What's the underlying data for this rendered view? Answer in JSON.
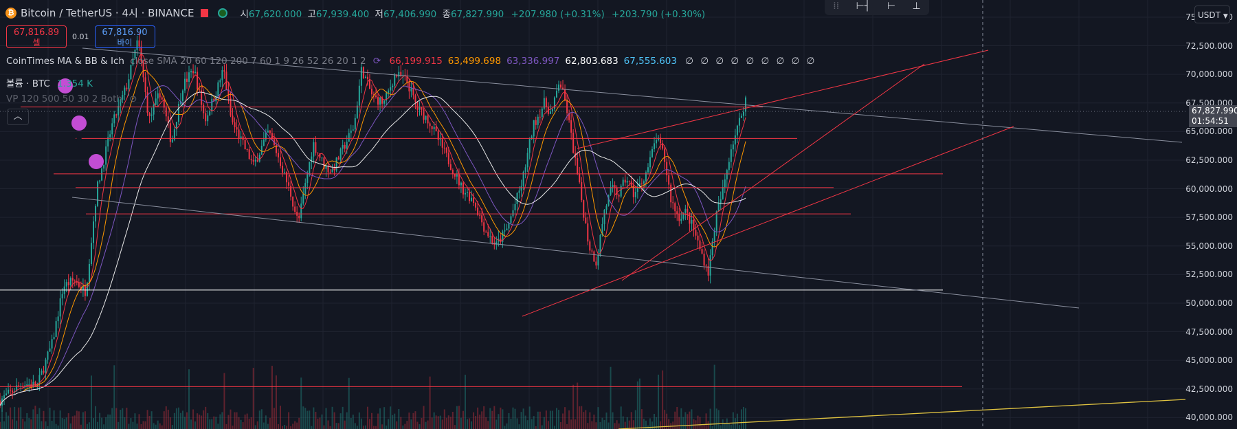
{
  "header": {
    "title": "Bitcoin / TetherUS · 4시 · BINANCE",
    "ohlc": [
      {
        "label": "시",
        "value": "67,620.000"
      },
      {
        "label": "고",
        "value": "67,939.400"
      },
      {
        "label": "저",
        "value": "67,406.990"
      },
      {
        "label": "종",
        "value": "67,827.990"
      }
    ],
    "change": "+207.980 (+0.31%)",
    "change2": "+203.790 (+0.30%)"
  },
  "trade": {
    "sell_price": "67,816.89",
    "sell_label": "셀",
    "spread": "0.01",
    "buy_price": "67,816.90",
    "buy_label": "바이"
  },
  "indicators": {
    "ma": {
      "name": "CoinTimes MA & BB & Ich",
      "params": "close SMA 20 60 120 200 7 60 1 9 26 52 26 20 1 2",
      "values": [
        {
          "v": "66,199.915",
          "color": "#f23645"
        },
        {
          "v": "63,499.698",
          "color": "#ff9800"
        },
        {
          "v": "63,336.997",
          "color": "#7e57c2"
        },
        {
          "v": "62,803.683",
          "color": "#ffffff"
        },
        {
          "v": "67,555.603",
          "color": "#4fc3f7"
        }
      ],
      "empty": "∅ ∅ ∅ ∅ ∅ ∅ ∅ ∅ ∅"
    },
    "volume": {
      "name": "볼륨 · BTC",
      "value": "1.354 K"
    },
    "vp": {
      "name": "VP 120 500 50 30 2 Both"
    }
  },
  "toolbox_icons": [
    "drag-handle-icon",
    "long-position-icon",
    "short-position-icon",
    "price-range-icon"
  ],
  "axis": {
    "currency": "USDT",
    "current_price": "67,827.990",
    "countdown": "01:54:51"
  },
  "chart_data": {
    "type": "candlestick",
    "yrange": [
      39000,
      76500
    ],
    "y_ticks": [
      "40,000.000",
      "42,500.000",
      "45,000.000",
      "47,500.000",
      "50,000.000",
      "52,500.000",
      "55,000.000",
      "57,500.000",
      "60,000.000",
      "62,500.000",
      "65,000.000",
      "67,500.000",
      "70,000.000",
      "72,500.000",
      "75,000.000"
    ],
    "y_tick_values": [
      40000,
      42500,
      45000,
      47500,
      50000,
      52500,
      55000,
      57500,
      60000,
      62500,
      65000,
      67500,
      70000,
      72500,
      75000
    ],
    "price_path": [
      [
        0,
        41500
      ],
      [
        0.03,
        43000
      ],
      [
        0.05,
        42800
      ],
      [
        0.07,
        46500
      ],
      [
        0.085,
        51500
      ],
      [
        0.1,
        52000
      ],
      [
        0.115,
        51000
      ],
      [
        0.13,
        60000
      ],
      [
        0.15,
        65500
      ],
      [
        0.17,
        69000
      ],
      [
        0.185,
        73000
      ],
      [
        0.2,
        66000
      ],
      [
        0.215,
        68500
      ],
      [
        0.23,
        64000
      ],
      [
        0.245,
        69000
      ],
      [
        0.26,
        70500
      ],
      [
        0.275,
        66000
      ],
      [
        0.29,
        68500
      ],
      [
        0.3,
        70500
      ],
      [
        0.31,
        66000
      ],
      [
        0.325,
        64000
      ],
      [
        0.34,
        62000
      ],
      [
        0.36,
        65000
      ],
      [
        0.375,
        62500
      ],
      [
        0.39,
        59500
      ],
      [
        0.4,
        57000
      ],
      [
        0.41,
        60500
      ],
      [
        0.42,
        64000
      ],
      [
        0.435,
        62000
      ],
      [
        0.445,
        61500
      ],
      [
        0.46,
        63500
      ],
      [
        0.475,
        65500
      ],
      [
        0.485,
        70500
      ],
      [
        0.5,
        68000
      ],
      [
        0.515,
        67500
      ],
      [
        0.53,
        70000
      ],
      [
        0.545,
        69500
      ],
      [
        0.56,
        67000
      ],
      [
        0.575,
        66000
      ],
      [
        0.59,
        64000
      ],
      [
        0.605,
        62000
      ],
      [
        0.62,
        60000
      ],
      [
        0.635,
        59000
      ],
      [
        0.65,
        56500
      ],
      [
        0.665,
        55000
      ],
      [
        0.68,
        56500
      ],
      [
        0.7,
        60500
      ],
      [
        0.715,
        65500
      ],
      [
        0.73,
        67500
      ],
      [
        0.74,
        66500
      ],
      [
        0.75,
        69500
      ],
      [
        0.76,
        67000
      ],
      [
        0.77,
        63000
      ],
      [
        0.78,
        59000
      ],
      [
        0.79,
        55000
      ],
      [
        0.8,
        53500
      ],
      [
        0.81,
        58000
      ],
      [
        0.82,
        60000
      ],
      [
        0.83,
        59500
      ],
      [
        0.84,
        61000
      ],
      [
        0.85,
        59500
      ],
      [
        0.86,
        60500
      ],
      [
        0.87,
        62000
      ],
      [
        0.88,
        64500
      ],
      [
        0.89,
        63000
      ],
      [
        0.9,
        59000
      ],
      [
        0.91,
        57500
      ],
      [
        0.92,
        58000
      ],
      [
        0.93,
        56500
      ],
      [
        0.94,
        54500
      ],
      [
        0.95,
        52700
      ],
      [
        0.96,
        57500
      ],
      [
        0.97,
        60000
      ],
      [
        0.98,
        63500
      ],
      [
        0.99,
        65500
      ],
      [
        1.0,
        67828
      ]
    ],
    "horizontal_levels": [
      {
        "price": 67150,
        "color": "#f23645"
      },
      {
        "price": 64400,
        "color": "#f23645"
      },
      {
        "price": 61300,
        "color": "#f23645"
      },
      {
        "price": 60100,
        "color": "#f23645"
      },
      {
        "price": 57800,
        "color": "#f23645"
      },
      {
        "price": 51150,
        "color": "#ffffff"
      },
      {
        "price": 42700,
        "color": "#f23645"
      }
    ]
  }
}
